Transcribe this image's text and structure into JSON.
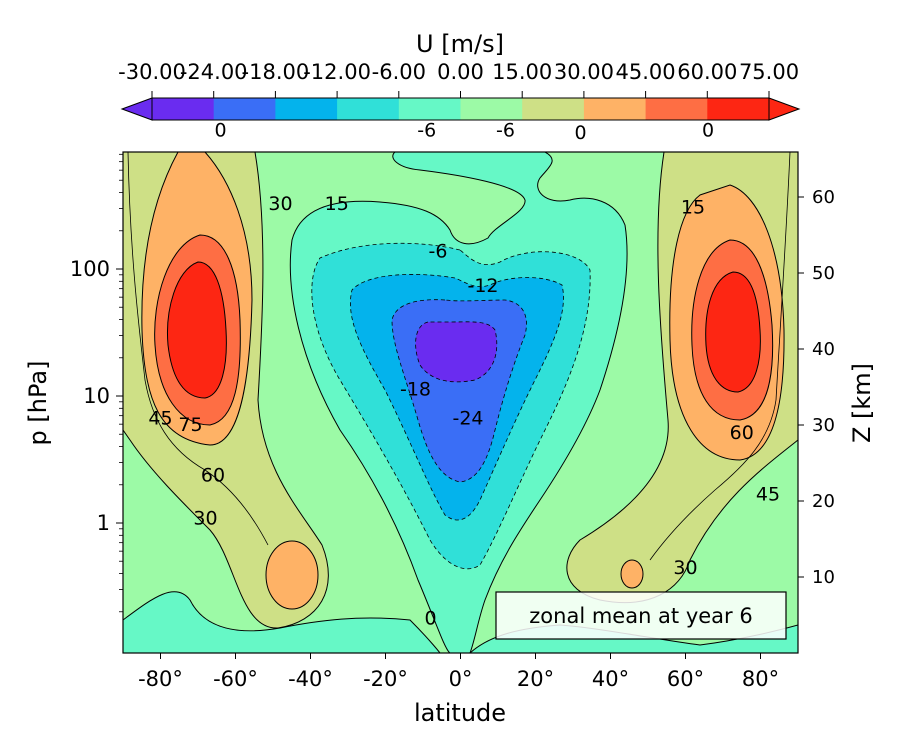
{
  "chart_data": {
    "type": "contour",
    "title": "",
    "xlabel": "latitude",
    "ylabel": "p  [hPa]",
    "ylabel_right": "Z [km]",
    "xlim": [
      -90,
      90
    ],
    "ylim_hpa": [
      1000,
      0.1
    ],
    "y_scale": "log",
    "x_ticks": [
      "-80°",
      "-60°",
      "-40°",
      "-20°",
      "0°",
      "20°",
      "40°",
      "60°",
      "80°"
    ],
    "x_tick_values": [
      -80,
      -60,
      -40,
      -20,
      0,
      20,
      40,
      60,
      80
    ],
    "y_ticks": [
      "1",
      "10",
      "100"
    ],
    "y_tick_values": [
      1,
      10,
      100
    ],
    "y_right_ticks": [
      "10",
      "20",
      "30",
      "40",
      "50",
      "60"
    ],
    "y_right_tick_values": [
      10,
      20,
      30,
      40,
      50,
      60
    ],
    "annotation": "zonal mean at year 6",
    "colorbar": {
      "label": "U [m/s]",
      "levels": [
        "-30.00",
        "-24.00",
        "-18.00",
        "-12.00",
        "-6.00",
        "0.00",
        "15.00",
        "30.00",
        "45.00",
        "60.00",
        "75.00"
      ],
      "colors": [
        "#6a2cf0",
        "#3a6ef6",
        "#04b3ec",
        "#30e0d8",
        "#66f8c6",
        "#9cfaa6",
        "#cee086",
        "#feb266",
        "#fe6e44",
        "#fd2613",
        "#fd2613"
      ],
      "extend": "both"
    },
    "contour_labels": [
      {
        "text": "0",
        "lat": -8,
        "p": 0.18
      },
      {
        "text": "30",
        "lat": -68,
        "p": 1.1
      },
      {
        "text": "60",
        "lat": -66,
        "p": 2.4
      },
      {
        "text": "75",
        "lat": -72,
        "p": 6.0
      },
      {
        "text": "45",
        "lat": -80,
        "p": 6.8
      },
      {
        "text": "-24",
        "lat": 2,
        "p": 6.8
      },
      {
        "text": "-18",
        "lat": -12,
        "p": 11.5
      },
      {
        "text": "-12",
        "lat": 6,
        "p": 75
      },
      {
        "text": "-6",
        "lat": -6,
        "p": 140
      },
      {
        "text": "30",
        "lat": -48,
        "p": 330
      },
      {
        "text": "15",
        "lat": -33,
        "p": 330
      },
      {
        "text": "30",
        "lat": 60,
        "p": 0.45
      },
      {
        "text": "45",
        "lat": 82,
        "p": 1.7
      },
      {
        "text": "60",
        "lat": 75,
        "p": 5.2
      },
      {
        "text": "15",
        "lat": 62,
        "p": 310
      },
      {
        "text": "0",
        "lat": 32,
        "p": 1200
      },
      {
        "text": "-6",
        "lat": -9,
        "p": 1250
      },
      {
        "text": "-6",
        "lat": 12,
        "p": 1250
      },
      {
        "text": "0",
        "lat": 66,
        "p": 1250
      },
      {
        "text": "0",
        "lat": -64,
        "p": 1250
      }
    ]
  }
}
